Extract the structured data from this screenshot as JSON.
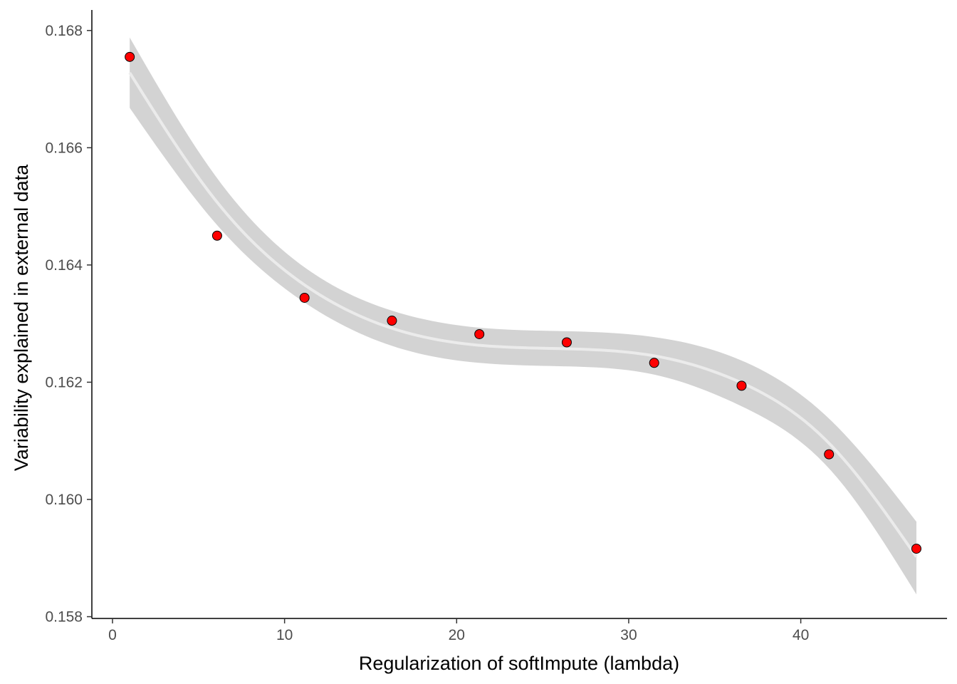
{
  "chart_data": {
    "type": "scatter",
    "title": "",
    "xlabel": "Regularization of softImpute (lambda)",
    "ylabel": "Variability explained in external data",
    "xlim": [
      -1.2,
      48.5
    ],
    "ylim": [
      0.15797,
      0.16835
    ],
    "x_ticks": [
      0,
      10,
      20,
      30,
      40
    ],
    "x_tick_labels": [
      "0",
      "10",
      "20",
      "30",
      "40"
    ],
    "y_ticks": [
      0.158,
      0.16,
      0.162,
      0.164,
      0.166,
      0.168
    ],
    "y_tick_labels": [
      "0.158",
      "0.160",
      "0.162",
      "0.164",
      "0.166",
      "0.168"
    ],
    "grid": false,
    "series": [
      {
        "x": [
          1.0,
          6.08,
          11.16,
          16.24,
          21.32,
          26.4,
          31.48,
          36.56,
          41.64,
          46.72
        ],
        "y": [
          0.16755,
          0.1645,
          0.16344,
          0.16305,
          0.16282,
          0.16268,
          0.16233,
          0.16194,
          0.16077,
          0.15916
        ],
        "color": "#ff0000",
        "edge_color": "#000000"
      }
    ],
    "smooth": {
      "method": "cubic polynomial fit with confidence band",
      "line_color": "#ebebeb",
      "band_color": "#d3d3d3",
      "x": [
        1.0,
        6.08,
        11.16,
        16.24,
        21.32,
        26.4,
        31.48,
        36.56,
        41.64,
        46.72
      ],
      "fit": [
        0.16728,
        0.16507,
        0.16366,
        0.16292,
        0.16263,
        0.16257,
        0.16245,
        0.16199,
        0.16096,
        0.15902
      ],
      "lower": [
        0.16668,
        0.16468,
        0.16336,
        0.16262,
        0.16233,
        0.16227,
        0.16213,
        0.16159,
        0.16053,
        0.15838
      ],
      "upper": [
        0.16788,
        0.16548,
        0.16396,
        0.16322,
        0.16293,
        0.16287,
        0.16277,
        0.16237,
        0.16138,
        0.15962
      ]
    }
  }
}
